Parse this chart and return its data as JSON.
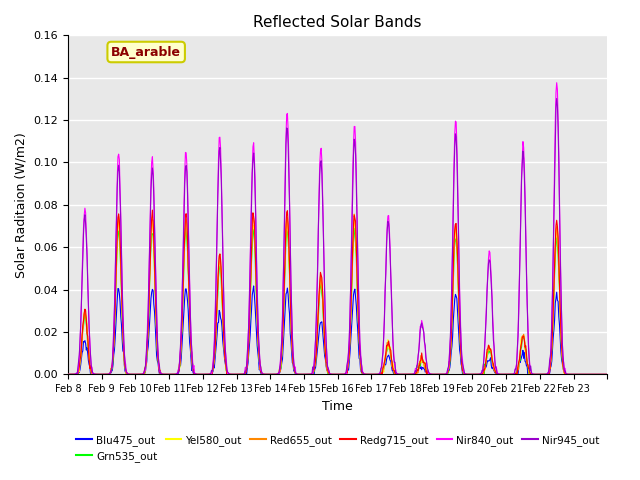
{
  "title": "Reflected Solar Bands",
  "xlabel": "Time",
  "ylabel": "Solar Raditaion (W/m2)",
  "annotation": "BA_arable",
  "ylim": [
    0,
    0.16
  ],
  "series_colors": {
    "Blu475_out": "#0000ff",
    "Grn535_out": "#00ff00",
    "Yel580_out": "#ffff00",
    "Red655_out": "#ff8800",
    "Redg715_out": "#ff0000",
    "Nir840_out": "#ff00ff",
    "Nir945_out": "#9900cc"
  },
  "xtick_labels": [
    "Feb 8",
    "Feb 9",
    "Feb 10",
    "Feb 11",
    "Feb 12",
    "Feb 13",
    "Feb 14",
    "Feb 15",
    "Feb 16",
    "Feb 17",
    "Feb 18",
    "Feb 19",
    "Feb 20",
    "Feb 21",
    "Feb 22",
    "Feb 23"
  ],
  "background_color": "#e8e8e8",
  "grid_color": "#ffffff",
  "nir840_peaks": [
    0.079,
    0.104,
    0.102,
    0.105,
    0.113,
    0.11,
    0.123,
    0.107,
    0.118,
    0.076,
    0.025,
    0.12,
    0.058,
    0.11,
    0.138,
    0.0
  ],
  "blu475_peaks": [
    0.016,
    0.04,
    0.04,
    0.04,
    0.03,
    0.04,
    0.04,
    0.025,
    0.04,
    0.008,
    0.004,
    0.038,
    0.007,
    0.01,
    0.038,
    0.0
  ],
  "grn_scale": 1.7,
  "yel_scale": 1.8,
  "red_scale": 1.85,
  "redg_scale": 1.9,
  "nir945_scale": 0.95,
  "n_per_day": 48,
  "n_days": 16
}
